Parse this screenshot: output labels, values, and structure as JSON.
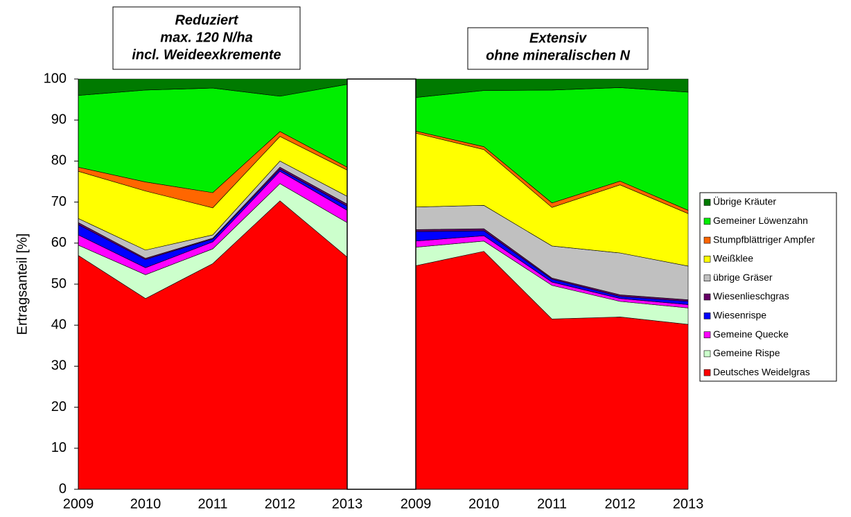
{
  "chart_data": {
    "type": "area",
    "y_label": "Ertragsanteil [%]",
    "ylim": [
      0,
      100
    ],
    "yticks": [
      0,
      10,
      20,
      30,
      40,
      50,
      60,
      70,
      80,
      90,
      100
    ],
    "series": [
      {
        "name": "Deutsches Weidelgras",
        "color": "#ff0000"
      },
      {
        "name": "Gemeine Rispe",
        "color": "#ccffcc"
      },
      {
        "name": "Gemeine Quecke",
        "color": "#ff00ff"
      },
      {
        "name": "Wiesenrispe",
        "color": "#0000ff"
      },
      {
        "name": "Wiesenlieschgras",
        "color": "#660066"
      },
      {
        "name": "übrige Gräser",
        "color": "#c0c0c0"
      },
      {
        "name": "Weißklee",
        "color": "#ffff00"
      },
      {
        "name": "Stumpfblättriger Ampfer",
        "color": "#ff6600"
      },
      {
        "name": "Gemeiner Löwenzahn",
        "color": "#00ee00"
      },
      {
        "name": "Übrige Kräuter",
        "color": "#007a00"
      }
    ],
    "panels": [
      {
        "title": [
          "Reduziert",
          "max. 120 N/ha",
          "incl. Weideexkremente"
        ],
        "categories": [
          "2009",
          "2010",
          "2011",
          "2012",
          "2013"
        ],
        "values": [
          [
            57,
            46.5,
            55,
            70.3,
            56.6
          ],
          [
            2.5,
            5.8,
            3.6,
            4.2,
            8.4
          ],
          [
            2.5,
            1.7,
            1.7,
            3,
            3
          ],
          [
            2.5,
            2,
            0.7,
            0.5,
            1
          ],
          [
            0.5,
            0.3,
            0.2,
            0.5,
            0.5
          ],
          [
            1,
            2,
            0.8,
            1.5,
            1.9
          ],
          [
            11.5,
            14.4,
            6.6,
            6,
            6.4
          ],
          [
            1,
            2.2,
            3.7,
            1.2,
            0.7
          ],
          [
            17.5,
            22.4,
            25.5,
            8.6,
            20.2
          ],
          [
            4,
            2.7,
            2.2,
            4.2,
            1.3
          ]
        ]
      },
      {
        "title": [
          "Extensiv",
          "ohne mineralischen N"
        ],
        "categories": [
          "2009",
          "2010",
          "2011",
          "2012",
          "2013"
        ],
        "values": [
          [
            54.5,
            58,
            41.5,
            42,
            40.2
          ],
          [
            4.5,
            2.5,
            8.2,
            3.8,
            4
          ],
          [
            1.5,
            1.3,
            0.8,
            0.7,
            0.8
          ],
          [
            2.3,
            1.2,
            0.7,
            0.5,
            0.8
          ],
          [
            0.5,
            0.5,
            0.3,
            0.4,
            0.4
          ],
          [
            5.5,
            5.7,
            7.8,
            10.2,
            8.2
          ],
          [
            18,
            13.6,
            9.4,
            16.6,
            12.8
          ],
          [
            0.5,
            0.7,
            1.1,
            0.9,
            0.8
          ],
          [
            8.2,
            13.7,
            27.5,
            22.8,
            28.8
          ],
          [
            4.5,
            2.8,
            2.7,
            2.1,
            3.2
          ]
        ]
      }
    ]
  }
}
